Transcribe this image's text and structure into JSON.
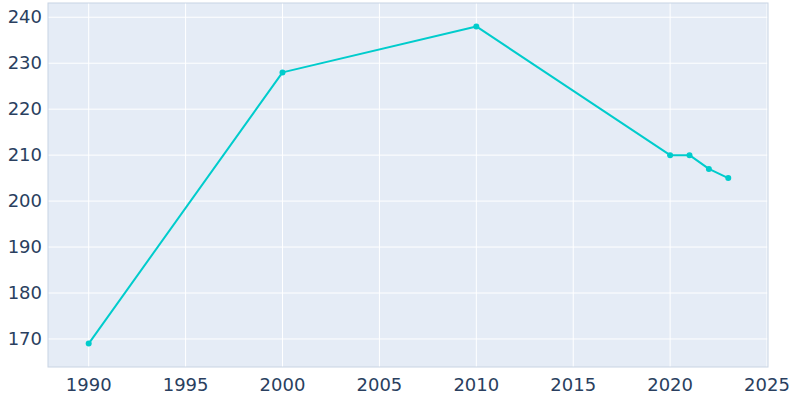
{
  "chart_data": {
    "type": "line",
    "x": [
      1990,
      2000,
      2010,
      2020,
      2021,
      2022,
      2023
    ],
    "values": [
      169,
      228,
      238,
      210,
      210,
      207,
      205
    ],
    "color": "#00cccc",
    "marker": "circle",
    "xlim": [
      1987.9,
      2025.05
    ],
    "xticks": [
      1990,
      1995,
      2000,
      2005,
      2010,
      2015,
      2020,
      2025
    ],
    "ylim": [
      163.9,
      243.1
    ],
    "yticks": [
      170,
      180,
      190,
      200,
      210,
      220,
      230,
      240
    ],
    "grid": true
  }
}
